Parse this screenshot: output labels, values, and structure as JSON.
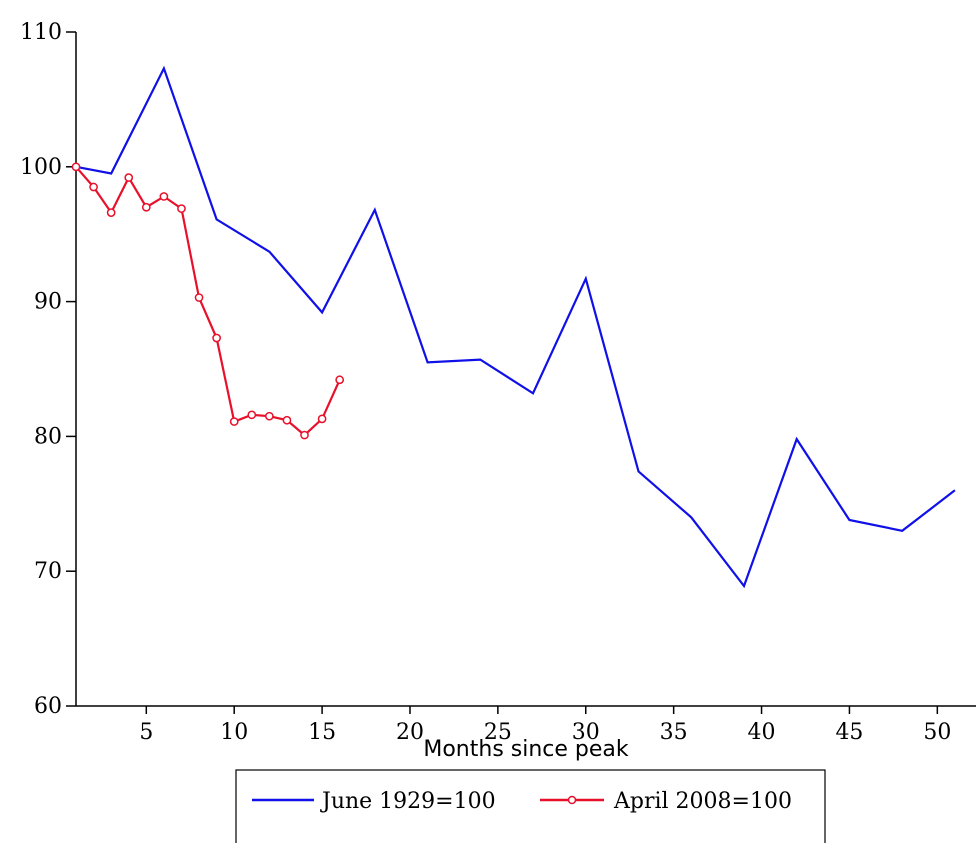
{
  "chart_data": {
    "type": "line",
    "title": "",
    "xlabel": "Months since peak",
    "ylabel": "",
    "xlim": [
      1,
      52
    ],
    "ylim": [
      60,
      110
    ],
    "x_ticks": [
      5,
      10,
      15,
      20,
      25,
      30,
      35,
      40,
      45,
      50
    ],
    "y_ticks": [
      60,
      70,
      80,
      90,
      100,
      110
    ],
    "grid": false,
    "legend_position": "bottom-center",
    "series": [
      {
        "name": "June 1929=100",
        "color": "#1010e8",
        "markers": false,
        "x": [
          1,
          3,
          6,
          9,
          12,
          15,
          18,
          21,
          24,
          27,
          30,
          33,
          36,
          39,
          42,
          45,
          48,
          51
        ],
        "y": [
          100.0,
          99.5,
          107.3,
          96.1,
          93.7,
          89.2,
          96.8,
          85.5,
          85.7,
          83.2,
          91.7,
          77.4,
          74.0,
          68.9,
          79.8,
          73.8,
          73.0,
          76.0
        ]
      },
      {
        "name": "April 2008=100",
        "color": "#e8102a",
        "markers": true,
        "x": [
          1,
          2,
          3,
          4,
          5,
          6,
          7,
          8,
          9,
          10,
          11,
          12,
          13,
          14,
          15,
          16
        ],
        "y": [
          100.0,
          98.5,
          96.6,
          99.2,
          97.0,
          97.8,
          96.9,
          90.3,
          87.3,
          81.1,
          81.6,
          81.5,
          81.2,
          80.1,
          81.3,
          84.2
        ]
      }
    ]
  }
}
